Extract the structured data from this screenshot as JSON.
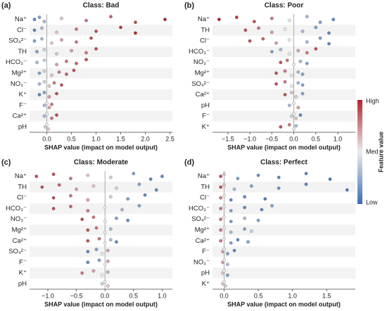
{
  "colorbar": {
    "title": "Feature value",
    "labels": [
      "High",
      "Med",
      "Low"
    ],
    "colors": [
      "#3a6db5",
      "#ececec",
      "#b3242e"
    ]
  },
  "chart_data": [
    {
      "type": "beeswarm",
      "panel": "(a)",
      "title": "Class: Bad",
      "xlabel": "SHAP value (impact on model output)",
      "xlim": [
        -0.35,
        2.55
      ],
      "xticks": [
        {
          "value": 0,
          "label": "0.0"
        },
        {
          "value": 0.5,
          "label": "0.5"
        },
        {
          "value": 1,
          "label": "1.0"
        },
        {
          "value": 1.5,
          "label": "1.5"
        },
        {
          "value": 2,
          "label": "2.0"
        },
        {
          "value": 2.5,
          "label": "2.5"
        }
      ],
      "series": [
        {
          "name": "Na⁺",
          "values": [
            -0.25,
            -0.15,
            -0.05,
            0.3,
            0.8,
            1.3,
            1.8,
            2.4
          ],
          "feature_values": [
            0.1,
            0.2,
            0.3,
            0.6,
            0.8,
            0.85,
            0.9,
            1
          ]
        },
        {
          "name": "Cl⁻",
          "values": [
            -0.25,
            -0.1,
            0.2,
            0.6,
            1.0,
            1.5,
            1.8
          ],
          "feature_values": [
            0.1,
            0.3,
            0.6,
            0.8,
            0.9,
            0.95,
            1
          ]
        },
        {
          "name": "SO₄²⁻",
          "values": [
            -0.25,
            -0.1,
            0.1,
            0.3,
            0.6,
            0.9
          ],
          "feature_values": [
            0.2,
            0.3,
            0.6,
            0.7,
            0.8,
            0.9
          ]
        },
        {
          "name": "TH",
          "values": [
            -0.2,
            -0.05,
            0.2,
            0.5,
            0.8,
            1.0
          ],
          "feature_values": [
            0.2,
            0.4,
            0.6,
            0.7,
            0.8,
            0.9
          ]
        },
        {
          "name": "HCO₃⁻",
          "values": [
            -0.2,
            -0.05,
            0.2,
            0.4,
            0.6,
            0.8
          ],
          "feature_values": [
            0.3,
            0.4,
            0.7,
            0.8,
            0.85,
            0.9
          ]
        },
        {
          "name": "Mg²⁺",
          "values": [
            -0.15,
            -0.05,
            0.1,
            0.25,
            0.4,
            0.55
          ],
          "feature_values": [
            0.2,
            0.4,
            0.6,
            0.8,
            0.85,
            0.9
          ]
        },
        {
          "name": "NO₃⁻",
          "values": [
            -0.15,
            -0.05,
            0.05,
            0.15,
            0.3
          ],
          "feature_values": [
            0.3,
            0.4,
            0.6,
            0.8,
            0.9
          ]
        },
        {
          "name": "K⁺",
          "values": [
            -0.15,
            -0.05,
            0.05,
            0.2
          ],
          "feature_values": [
            0.1,
            0.2,
            0.7,
            0.9
          ]
        },
        {
          "name": "F⁻",
          "values": [
            -0.05,
            0,
            0.05,
            0.1
          ],
          "feature_values": [
            0.3,
            0.5,
            0.7,
            0.8
          ]
        },
        {
          "name": "Ca²⁺",
          "values": [
            -0.05,
            0,
            0.1,
            0.2
          ],
          "feature_values": [
            0.3,
            0.5,
            0.8,
            0.9
          ]
        },
        {
          "name": "pH",
          "values": [
            -0.03,
            0,
            0.03
          ],
          "feature_values": [
            0.4,
            0.5,
            0.6
          ]
        }
      ]
    },
    {
      "type": "beeswarm",
      "panel": "(b)",
      "title": "Class: Poor",
      "xlabel": "SHAP value (impact on model output)",
      "xlim": [
        -1.85,
        1.4
      ],
      "xticks": [
        {
          "value": -1.5,
          "label": "−1.5"
        },
        {
          "value": -1,
          "label": "−1.0"
        },
        {
          "value": -0.5,
          "label": "−0.5"
        },
        {
          "value": 0,
          "label": "0.0"
        },
        {
          "value": 0.5,
          "label": "0.5"
        },
        {
          "value": 1,
          "label": "1.0"
        }
      ],
      "series": [
        {
          "name": "Na⁺",
          "values": [
            -1.7,
            -1.3,
            -0.9,
            -0.5,
            -0.1,
            0.3,
            0.6,
            0.9
          ],
          "feature_values": [
            1,
            0.95,
            0.9,
            0.8,
            0.5,
            0.3,
            0.2,
            0.1
          ]
        },
        {
          "name": "TH",
          "values": [
            -1.1,
            -0.8,
            -0.5,
            -0.2,
            0.2,
            0.5,
            0.8
          ],
          "feature_values": [
            0.9,
            0.8,
            0.7,
            0.5,
            0.3,
            0.2,
            0.1
          ]
        },
        {
          "name": "Cl⁻",
          "values": [
            -1.0,
            -0.7,
            -0.4,
            -0.1,
            0.3,
            0.6,
            0.8
          ],
          "feature_values": [
            0.9,
            0.85,
            0.7,
            0.5,
            0.3,
            0.2,
            0.1
          ]
        },
        {
          "name": "HCO₃⁻",
          "values": [
            -0.5,
            -0.3,
            -0.1,
            0.1,
            0.3,
            0.5
          ],
          "feature_values": [
            0.2,
            0.3,
            0.5,
            0.7,
            0.8,
            0.9
          ]
        },
        {
          "name": "NO₃⁻",
          "values": [
            -0.3,
            -0.15,
            0,
            0.15,
            0.3
          ],
          "feature_values": [
            0.9,
            0.8,
            0.5,
            0.3,
            0.2
          ]
        },
        {
          "name": "Mg²⁺",
          "values": [
            -0.4,
            -0.2,
            -0.05,
            0.1,
            0.2
          ],
          "feature_values": [
            0.9,
            0.8,
            0.5,
            0.3,
            0.2
          ]
        },
        {
          "name": "SO₄²⁻",
          "values": [
            -0.4,
            -0.2,
            -0.05,
            0.1,
            0.2
          ],
          "feature_values": [
            0.9,
            0.8,
            0.5,
            0.3,
            0.2
          ]
        },
        {
          "name": "Ca²⁺",
          "values": [
            -0.2,
            -0.05,
            0.05,
            0.2
          ],
          "feature_values": [
            0.9,
            0.6,
            0.4,
            0.2
          ]
        },
        {
          "name": "pH",
          "values": [
            -0.1,
            0,
            0.1
          ],
          "feature_values": [
            0.3,
            0.5,
            0.7
          ]
        },
        {
          "name": "F⁻",
          "values": [
            -0.05,
            0,
            0.05,
            0.15
          ],
          "feature_values": [
            0.4,
            0.5,
            0.6,
            0.1
          ]
        },
        {
          "name": "K⁺",
          "values": [
            -0.3,
            -0.1,
            0,
            0.05
          ],
          "feature_values": [
            0.9,
            0.8,
            0.5,
            0.3
          ]
        }
      ]
    },
    {
      "type": "beeswarm",
      "panel": "(c)",
      "title": "Class: Moderate",
      "xlabel": "SHAP value (impact on model output)",
      "xlim": [
        -1.32,
        1.18
      ],
      "xticks": [
        {
          "value": -1,
          "label": "−1.0"
        },
        {
          "value": -0.5,
          "label": "−0.5"
        },
        {
          "value": 0,
          "label": "0.0"
        },
        {
          "value": 0.5,
          "label": "0.5"
        },
        {
          "value": 1,
          "label": "1.0"
        }
      ],
      "series": [
        {
          "name": "Na⁺",
          "values": [
            -1.2,
            -0.9,
            -0.6,
            -0.3,
            0.1,
            0.5,
            0.8,
            1.0
          ],
          "feature_values": [
            0.9,
            0.9,
            0.8,
            0.6,
            0.4,
            0.2,
            0.1,
            0.1
          ]
        },
        {
          "name": "TH",
          "values": [
            -1.1,
            -0.8,
            -0.5,
            -0.2,
            0.2,
            0.6,
            0.9
          ],
          "feature_values": [
            0.9,
            0.85,
            0.7,
            0.6,
            0.4,
            0.2,
            0.1
          ]
        },
        {
          "name": "Cl⁻",
          "values": [
            -0.9,
            -0.6,
            -0.3,
            0.1,
            0.4,
            0.7
          ],
          "feature_values": [
            0.9,
            0.8,
            0.7,
            0.4,
            0.2,
            0.1
          ]
        },
        {
          "name": "HCO₃⁻",
          "values": [
            -0.9,
            -0.6,
            -0.3,
            0,
            0.3,
            0.6
          ],
          "feature_values": [
            0.9,
            0.85,
            0.8,
            0.5,
            0.3,
            0.2
          ]
        },
        {
          "name": "NO₃⁻",
          "values": [
            -0.4,
            -0.2,
            0,
            0.2,
            0.4
          ],
          "feature_values": [
            0.9,
            0.8,
            0.5,
            0.2,
            0.1
          ]
        },
        {
          "name": "Mg²⁺",
          "values": [
            -0.3,
            -0.15,
            0,
            0.1
          ],
          "feature_values": [
            0.9,
            0.8,
            0.5,
            0.3
          ]
        },
        {
          "name": "Ca²⁺",
          "values": [
            -0.3,
            -0.1,
            0,
            0.1,
            0.2
          ],
          "feature_values": [
            0.9,
            0.8,
            0.5,
            0.3,
            0.1
          ]
        },
        {
          "name": "SO₄²⁻",
          "values": [
            -0.3,
            -0.15,
            -0.05,
            0.05
          ],
          "feature_values": [
            0.1,
            0.2,
            0.5,
            0.7
          ]
        },
        {
          "name": "F⁻",
          "values": [
            -0.3,
            -0.1,
            0,
            0.05
          ],
          "feature_values": [
            0.1,
            0.2,
            0.5,
            0.7
          ]
        },
        {
          "name": "K⁺",
          "values": [
            -0.4,
            -0.2,
            -0.05,
            0.05
          ],
          "feature_values": [
            0.8,
            0.7,
            0.5,
            0.3
          ]
        },
        {
          "name": "pH",
          "values": [
            -0.05,
            0,
            0.05
          ],
          "feature_values": [
            0.4,
            0.5,
            0.6
          ]
        }
      ]
    },
    {
      "type": "beeswarm",
      "panel": "(d)",
      "title": "Class: Perfect",
      "xlabel": "SHAP value (impact on model output)",
      "xlim": [
        -0.17,
        1.92
      ],
      "xticks": [
        {
          "value": 0,
          "label": "0.0"
        },
        {
          "value": 0.5,
          "label": "0.5"
        },
        {
          "value": 1,
          "label": "1.0"
        },
        {
          "value": 1.5,
          "label": "1.5"
        }
      ],
      "series": [
        {
          "name": "Na⁺",
          "values": [
            -0.05,
            0,
            0.2,
            0.5,
            0.8,
            1.2,
            1.55
          ],
          "feature_values": [
            0.9,
            0.6,
            0.2,
            0.15,
            0.1,
            0.1,
            0.05
          ]
        },
        {
          "name": "TH",
          "values": [
            -0.05,
            0,
            0.15,
            0.4,
            0.8,
            1.2,
            1.8
          ],
          "feature_values": [
            0.9,
            0.6,
            0.3,
            0.2,
            0.15,
            0.1,
            0.05
          ]
        },
        {
          "name": "Cl⁻",
          "values": [
            -0.05,
            0,
            0.1,
            0.3,
            0.6
          ],
          "feature_values": [
            0.8,
            0.5,
            0.1,
            0.1,
            0.05
          ]
        },
        {
          "name": "HCO₃⁻",
          "values": [
            -0.05,
            0,
            0.1,
            0.3,
            0.55,
            0.7
          ],
          "feature_values": [
            0.8,
            0.5,
            0.2,
            0.1,
            0.1,
            0.2
          ]
        },
        {
          "name": "SO₄²⁻",
          "values": [
            -0.05,
            0,
            0.1,
            0.3,
            0.5
          ],
          "feature_values": [
            0.8,
            0.5,
            0.2,
            0.3,
            0.2
          ]
        },
        {
          "name": "Mg²⁺",
          "values": [
            -0.05,
            0,
            0.1,
            0.3,
            0.4
          ],
          "feature_values": [
            0.8,
            0.5,
            0.3,
            0.2,
            0.4
          ]
        },
        {
          "name": "Ca²⁺",
          "values": [
            -0.05,
            0,
            0.1,
            0.2,
            0.35
          ],
          "feature_values": [
            0.8,
            0.5,
            0.2,
            0.1,
            0.2
          ]
        },
        {
          "name": "F⁻",
          "values": [
            -0.02,
            0,
            0.05,
            0.15
          ],
          "feature_values": [
            0.7,
            0.5,
            0.2,
            0.1
          ]
        },
        {
          "name": "NO₃⁻",
          "values": [
            -0.02,
            0,
            0.05
          ],
          "feature_values": [
            0.7,
            0.5,
            0.3
          ]
        },
        {
          "name": "pH",
          "values": [
            -0.02,
            0,
            0.05
          ],
          "feature_values": [
            0.6,
            0.5,
            0.2
          ]
        },
        {
          "name": "K⁺",
          "values": [
            -0.02,
            0,
            0.02
          ],
          "feature_values": [
            0.6,
            0.5,
            0.4
          ]
        }
      ]
    }
  ]
}
